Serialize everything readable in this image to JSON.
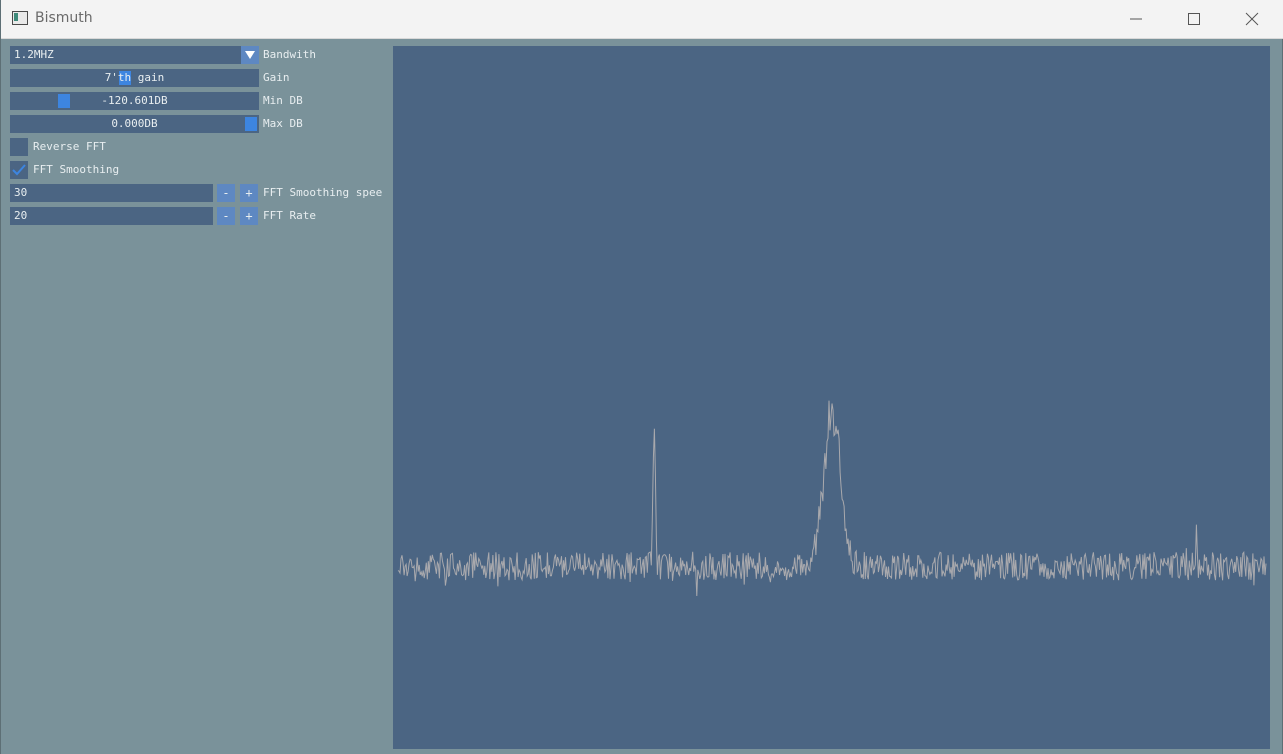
{
  "window": {
    "title": "Bismuth"
  },
  "controls": {
    "bandwidth": {
      "value": "1.2MHZ",
      "label": "Bandwith"
    },
    "gain": {
      "value": "7'th gain",
      "label": "Gain",
      "level": 0.46
    },
    "min_db": {
      "value": "-120.601DB",
      "label": "Min DB",
      "level": 0.22
    },
    "max_db": {
      "value": "0.000DB",
      "label": "Max DB",
      "level": 1.0
    },
    "reverse_fft": {
      "label": "Reverse FFT",
      "checked": false
    },
    "fft_smoothing": {
      "label": "FFT Smoothing",
      "checked": true
    },
    "smoothing_speed": {
      "value": "30",
      "minus": "-",
      "plus": "+",
      "label": "FFT Smoothing spee"
    },
    "fft_rate": {
      "value": "20",
      "minus": "-",
      "plus": "+",
      "label": "FFT Rate"
    }
  },
  "spectrum": {
    "line_color": "#a9a9ad",
    "background": "#4b6583",
    "noise_floor": 0.74,
    "peaks": [
      {
        "center": 0.295,
        "height": 0.2,
        "width": 0.002
      },
      {
        "center": 0.5,
        "height": 0.23,
        "width": 0.014
      },
      {
        "center": 0.92,
        "height": 0.06,
        "width": 0.001
      }
    ]
  }
}
